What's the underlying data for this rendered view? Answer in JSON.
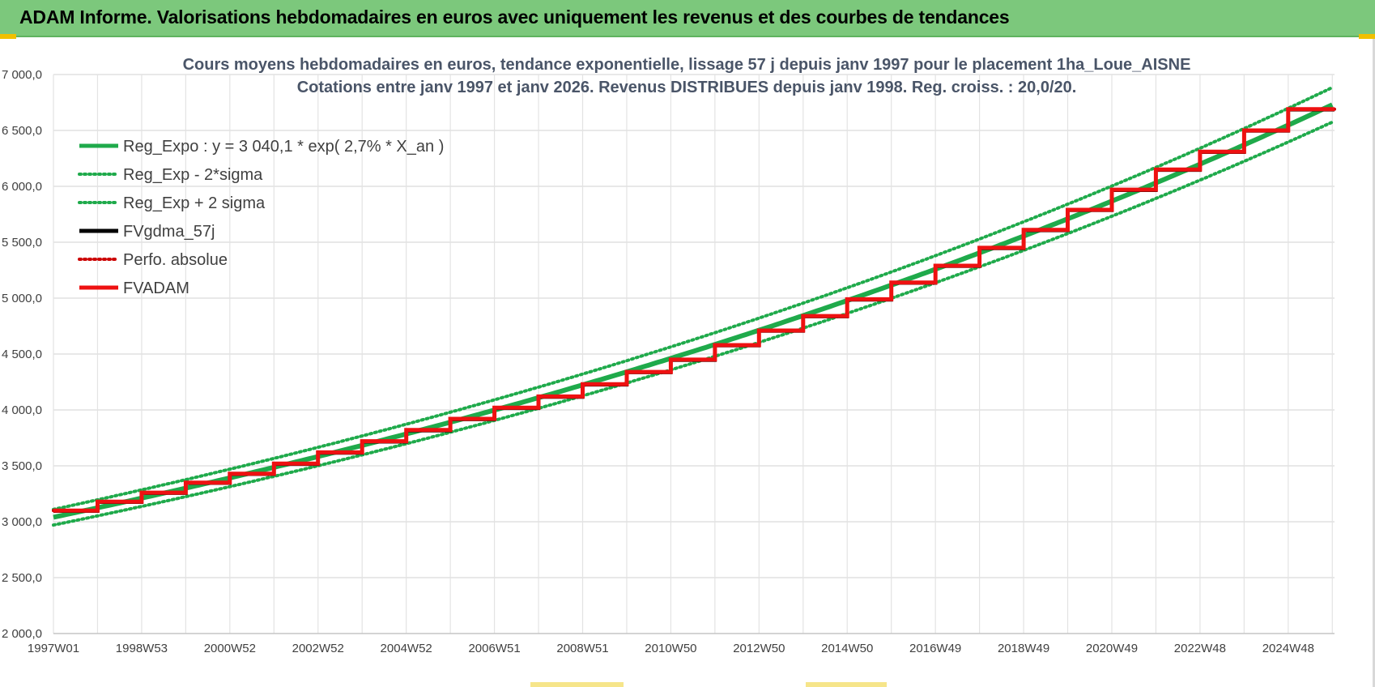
{
  "header": {
    "title": "ADAM Informe. Valorisations hebdomadaires en euros avec uniquement les revenus et des courbes de tendances"
  },
  "chart_data": {
    "type": "line",
    "title_line1": "Cours moyens hebdomadaires en euros, tendance exponentielle, lissage 57 j depuis janv 1997  pour le placement 1ha_Loue_AISNE",
    "title_line2": "Cotations entre janv 1997 et janv 2026. Revenus DISTRIBUES depuis janv 1998.  Reg. croiss. : 20,0/20.",
    "x_tick_labels": [
      "1997W01",
      "1998W53",
      "2000W52",
      "2002W52",
      "2004W52",
      "2006W51",
      "2008W51",
      "2010W50",
      "2012W50",
      "2014W50",
      "2016W49",
      "2018W49",
      "2020W49",
      "2022W48",
      "2024W48"
    ],
    "y_tick_labels": [
      "7 000,0",
      "6 500,0",
      "6 000,0",
      "5 500,0",
      "5 000,0",
      "4 500,0",
      "4 000,0",
      "3 500,0",
      "3 000,0",
      "2 500,0",
      "2 000,0"
    ],
    "ylim": [
      2000,
      7000
    ],
    "xlim_years": [
      1997.0,
      2026.05
    ],
    "grid": true,
    "legend_position": "top-left",
    "series": [
      {
        "name": "Reg_Expo : y = 3 040,1 * exp( 2,7% *  X_an )",
        "kind": "exp",
        "a": 3040.1,
        "k": 0.0274,
        "color": "#1faa4b",
        "style": "solid"
      },
      {
        "name": "Reg_Exp - 2*sigma",
        "kind": "exp",
        "a": 2970,
        "k": 0.0274,
        "color": "#1faa4b",
        "style": "dotted"
      },
      {
        "name": "Reg_Exp + 2 sigma",
        "kind": "exp",
        "a": 3110,
        "k": 0.0274,
        "color": "#1faa4b",
        "style": "dotted"
      },
      {
        "name": "FVgdma_57j",
        "kind": "step",
        "color": "#000000",
        "style": "solid"
      },
      {
        "name": "Perfo. absolue",
        "kind": "step",
        "color": "#cc0000",
        "style": "dotted"
      },
      {
        "name": "FVADAM",
        "kind": "step",
        "color": "#ee1111",
        "style": "solid"
      }
    ],
    "fvadam_steps": [
      {
        "year": 1997,
        "value": 3100
      },
      {
        "year": 1998,
        "value": 3180
      },
      {
        "year": 1999,
        "value": 3260
      },
      {
        "year": 2000,
        "value": 3350
      },
      {
        "year": 2001,
        "value": 3430
      },
      {
        "year": 2002,
        "value": 3520
      },
      {
        "year": 2003,
        "value": 3620
      },
      {
        "year": 2004,
        "value": 3720
      },
      {
        "year": 2005,
        "value": 3820
      },
      {
        "year": 2006,
        "value": 3920
      },
      {
        "year": 2007,
        "value": 4020
      },
      {
        "year": 2008,
        "value": 4120
      },
      {
        "year": 2009,
        "value": 4230
      },
      {
        "year": 2010,
        "value": 4340
      },
      {
        "year": 2011,
        "value": 4450
      },
      {
        "year": 2012,
        "value": 4580
      },
      {
        "year": 2013,
        "value": 4710
      },
      {
        "year": 2014,
        "value": 4840
      },
      {
        "year": 2015,
        "value": 4990
      },
      {
        "year": 2016,
        "value": 5140
      },
      {
        "year": 2017,
        "value": 5290
      },
      {
        "year": 2018,
        "value": 5450
      },
      {
        "year": 2019,
        "value": 5610
      },
      {
        "year": 2020,
        "value": 5790
      },
      {
        "year": 2021,
        "value": 5970
      },
      {
        "year": 2022,
        "value": 6150
      },
      {
        "year": 2023,
        "value": 6310
      },
      {
        "year": 2024,
        "value": 6500
      },
      {
        "year": 2025,
        "value": 6690
      }
    ]
  }
}
